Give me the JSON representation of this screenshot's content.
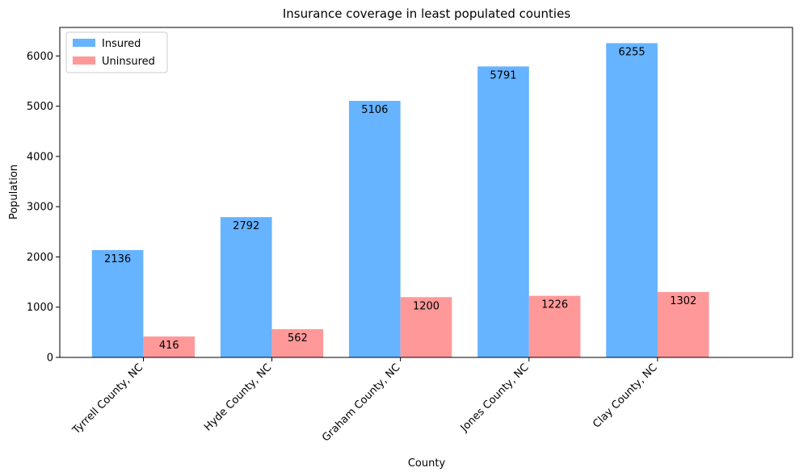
{
  "chart_data": {
    "type": "bar",
    "title": "Insurance coverage in least populated counties",
    "xlabel": "County",
    "ylabel": "Population",
    "categories": [
      "Tyrrell County, NC",
      "Hyde County, NC",
      "Graham County, NC",
      "Jones County, NC",
      "Clay County, NC"
    ],
    "series": [
      {
        "name": "Insured",
        "values": [
          2136,
          2792,
          5106,
          5791,
          6255
        ],
        "color": "#66b3ff"
      },
      {
        "name": "Uninsured",
        "values": [
          416,
          562,
          1200,
          1226,
          1302
        ],
        "color": "#ff9999"
      }
    ],
    "ylim": [
      0,
      6567.75
    ],
    "yticks": [
      0,
      1000,
      2000,
      3000,
      4000,
      5000,
      6000
    ],
    "grid": false,
    "legend_position": "top-left"
  }
}
